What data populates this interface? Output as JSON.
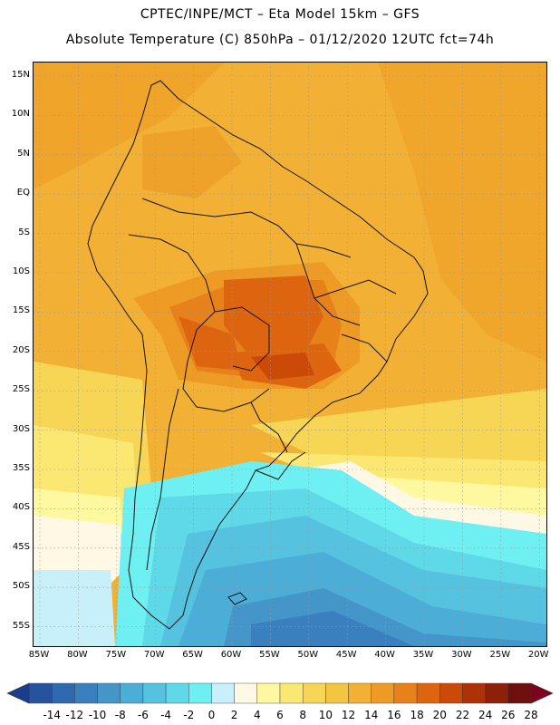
{
  "header": {
    "line1": "CPTEC/INPE/MCT –  Eta Model 15km – GFS",
    "line2": "Absolute Temperature (C) 850hPa – 01/12/2020 12UTC fct=74h"
  },
  "map": {
    "lat_labels": [
      "15N",
      "10N",
      "5N",
      "EQ",
      "5S",
      "10S",
      "15S",
      "20S",
      "25S",
      "30S",
      "35S",
      "40S",
      "45S",
      "50S",
      "55S"
    ],
    "lon_labels": [
      "85W",
      "80W",
      "75W",
      "70W",
      "65W",
      "60W",
      "55W",
      "50W",
      "45W",
      "40W",
      "35W",
      "30W",
      "25W",
      "20W"
    ],
    "lon_range": [
      -86,
      -20
    ],
    "lat_range": [
      -58,
      16
    ],
    "gridlines": "dotted"
  },
  "colorbar": {
    "labels": [
      "-14",
      "-12",
      "-10",
      "-8",
      "-6",
      "-4",
      "-2",
      "0",
      "2",
      "4",
      "6",
      "8",
      "10",
      "12",
      "14",
      "16",
      "18",
      "20",
      "22",
      "24",
      "26",
      "28"
    ],
    "colors": [
      "#1c3d8c",
      "#26529e",
      "#2f69b0",
      "#3a80bf",
      "#4496c9",
      "#4caed6",
      "#55c3df",
      "#5fd8e8",
      "#6ef0f2",
      "#c8f0fa",
      "#fef8e4",
      "#fef9a0",
      "#fbe872",
      "#f7d656",
      "#f3c540",
      "#f2b134",
      "#ee9b25",
      "#e7821b",
      "#dd6510",
      "#cc4a08",
      "#ae3208",
      "#8c2008",
      "#6e1010",
      "#800020"
    ],
    "unit": "C"
  }
}
